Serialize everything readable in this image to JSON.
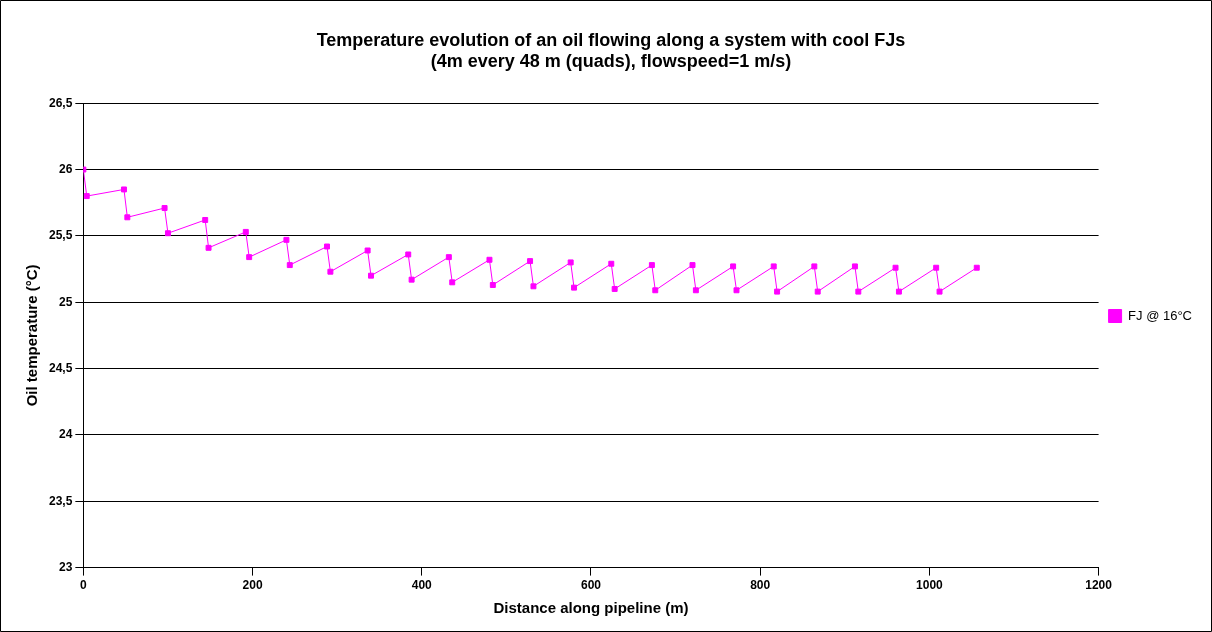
{
  "chart_data": {
    "type": "line",
    "title": "Temperature evolution of an oil flowing along a system with cool FJs",
    "subtitle": "(4m every 48 m (quads), flowspeed=1 m/s)",
    "xlabel": "Distance along pipeline (m)",
    "ylabel": "Oil temperature (°C)",
    "x": [
      0,
      4,
      48,
      52,
      96,
      100,
      144,
      148,
      192,
      196,
      240,
      244,
      288,
      292,
      336,
      340,
      384,
      388,
      432,
      436,
      480,
      484,
      528,
      532,
      576,
      580,
      624,
      628,
      672,
      676,
      720,
      724,
      768,
      772,
      816,
      820,
      864,
      868,
      912,
      916,
      960,
      964,
      1008,
      1012,
      1056
    ],
    "series": [
      {
        "name": "FJ @ 16°C",
        "color": "#ff00ff",
        "values": [
          26.0,
          25.8,
          25.85,
          25.64,
          25.71,
          25.52,
          25.62,
          25.41,
          25.53,
          25.34,
          25.47,
          25.28,
          25.42,
          25.23,
          25.39,
          25.2,
          25.36,
          25.17,
          25.34,
          25.15,
          25.32,
          25.13,
          25.31,
          25.12,
          25.3,
          25.11,
          25.29,
          25.1,
          25.28,
          25.09,
          25.28,
          25.09,
          25.27,
          25.09,
          25.27,
          25.08,
          25.27,
          25.08,
          25.27,
          25.08,
          25.26,
          25.08,
          25.26,
          25.08,
          25.26
        ]
      }
    ],
    "xlim": [
      0,
      1200
    ],
    "xticks": [
      0,
      200,
      400,
      600,
      800,
      1000,
      1200
    ],
    "ylim": [
      23,
      26.5
    ],
    "yticks": [
      23,
      {
        "value": 23.5,
        "label": "23,5"
      },
      24,
      {
        "value": 24.5,
        "label": "24,5"
      },
      25,
      {
        "value": 25.5,
        "label": "25,5"
      },
      26,
      {
        "value": 26.5,
        "label": "26,5"
      }
    ],
    "grid": "y",
    "legend": "right",
    "marker": "square",
    "line_style": "solid"
  }
}
